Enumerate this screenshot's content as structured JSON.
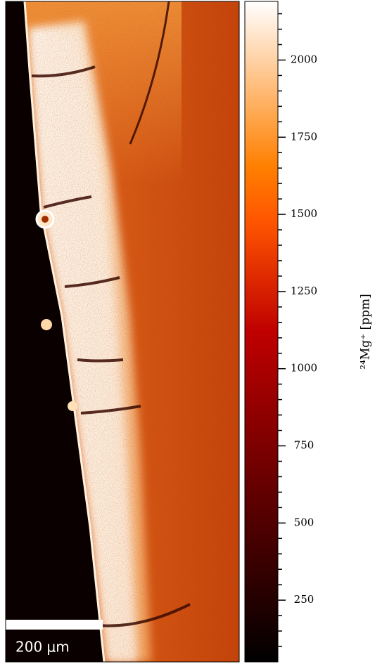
{
  "chart_data": {
    "type": "image-map",
    "colorbar_label": "²⁴Mg⁺ [ppm]",
    "scale_bar_label": "200 μm",
    "colormap": "gist_heat",
    "zlim": [
      50,
      2190
    ],
    "zticks": [
      250,
      500,
      750,
      1000,
      1250,
      1500,
      1750,
      2000
    ],
    "zminorticks": [
      100,
      150,
      200,
      300,
      350,
      400,
      450,
      550,
      600,
      650,
      700,
      800,
      850,
      900,
      950,
      1050,
      1100,
      1150,
      1200,
      1300,
      1350,
      1400,
      1450,
      1550,
      1600,
      1650,
      1700,
      1800,
      1850,
      1900,
      1950,
      2050,
      2100,
      2150
    ]
  }
}
